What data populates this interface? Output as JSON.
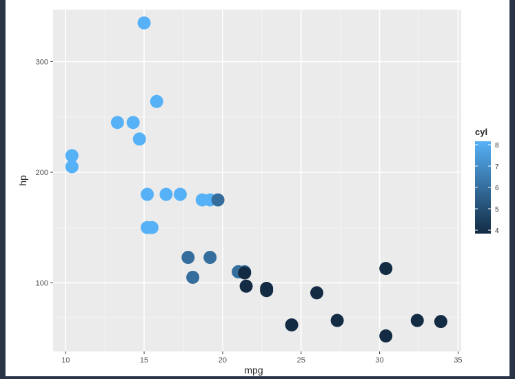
{
  "chart_data": {
    "type": "scatter",
    "title": "",
    "xlabel": "mpg",
    "ylabel": "hp",
    "xlim": [
      9.2,
      35.2
    ],
    "ylim": [
      38,
      347
    ],
    "x_ticks": [
      10,
      15,
      20,
      25,
      30,
      35
    ],
    "y_ticks": [
      100,
      200,
      300
    ],
    "grid": true,
    "legend": {
      "title": "cyl",
      "type": "colorbar",
      "position": "right",
      "range": [
        4,
        8
      ],
      "ticks": [
        4,
        5,
        6,
        7,
        8
      ],
      "low_color": "#132b43",
      "high_color": "#56b1f7"
    },
    "points": [
      {
        "x": 21.0,
        "y": 110,
        "cyl": 6
      },
      {
        "x": 21.0,
        "y": 110,
        "cyl": 6
      },
      {
        "x": 22.8,
        "y": 93,
        "cyl": 4
      },
      {
        "x": 21.4,
        "y": 110,
        "cyl": 6
      },
      {
        "x": 18.7,
        "y": 175,
        "cyl": 8
      },
      {
        "x": 18.1,
        "y": 105,
        "cyl": 6
      },
      {
        "x": 14.3,
        "y": 245,
        "cyl": 8
      },
      {
        "x": 24.4,
        "y": 62,
        "cyl": 4
      },
      {
        "x": 22.8,
        "y": 95,
        "cyl": 4
      },
      {
        "x": 19.2,
        "y": 123,
        "cyl": 6
      },
      {
        "x": 17.8,
        "y": 123,
        "cyl": 6
      },
      {
        "x": 16.4,
        "y": 180,
        "cyl": 8
      },
      {
        "x": 17.3,
        "y": 180,
        "cyl": 8
      },
      {
        "x": 15.2,
        "y": 180,
        "cyl": 8
      },
      {
        "x": 10.4,
        "y": 205,
        "cyl": 8
      },
      {
        "x": 10.4,
        "y": 215,
        "cyl": 8
      },
      {
        "x": 14.7,
        "y": 230,
        "cyl": 8
      },
      {
        "x": 32.4,
        "y": 66,
        "cyl": 4
      },
      {
        "x": 30.4,
        "y": 52,
        "cyl": 4
      },
      {
        "x": 33.9,
        "y": 65,
        "cyl": 4
      },
      {
        "x": 21.5,
        "y": 97,
        "cyl": 4
      },
      {
        "x": 15.5,
        "y": 150,
        "cyl": 8
      },
      {
        "x": 15.2,
        "y": 150,
        "cyl": 8
      },
      {
        "x": 13.3,
        "y": 245,
        "cyl": 8
      },
      {
        "x": 19.2,
        "y": 175,
        "cyl": 8
      },
      {
        "x": 27.3,
        "y": 66,
        "cyl": 4
      },
      {
        "x": 26.0,
        "y": 91,
        "cyl": 4
      },
      {
        "x": 30.4,
        "y": 113,
        "cyl": 4
      },
      {
        "x": 15.8,
        "y": 264,
        "cyl": 8
      },
      {
        "x": 19.7,
        "y": 175,
        "cyl": 6
      },
      {
        "x": 15.0,
        "y": 335,
        "cyl": 8
      },
      {
        "x": 21.4,
        "y": 109,
        "cyl": 4
      }
    ]
  }
}
